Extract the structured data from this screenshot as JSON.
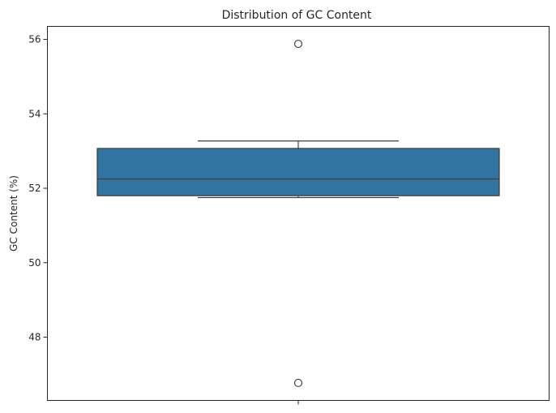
{
  "chart_data": {
    "type": "box",
    "title": "Distribution of GC Content",
    "xlabel": "",
    "ylabel": "GC Content (%)",
    "ylim": [
      46.3,
      56.35
    ],
    "yticks": [
      48,
      50,
      52,
      54,
      56
    ],
    "grid": false,
    "legend": "none",
    "series": [
      {
        "whisker_low": 51.75,
        "q1": 51.8,
        "median": 52.25,
        "q3": 53.07,
        "whisker_high": 53.27,
        "outliers": [
          55.88,
          46.77
        ]
      }
    ],
    "colors": {
      "box_fill": "#3274a1",
      "line": "#3d3d3d",
      "axis": "#262626"
    }
  }
}
